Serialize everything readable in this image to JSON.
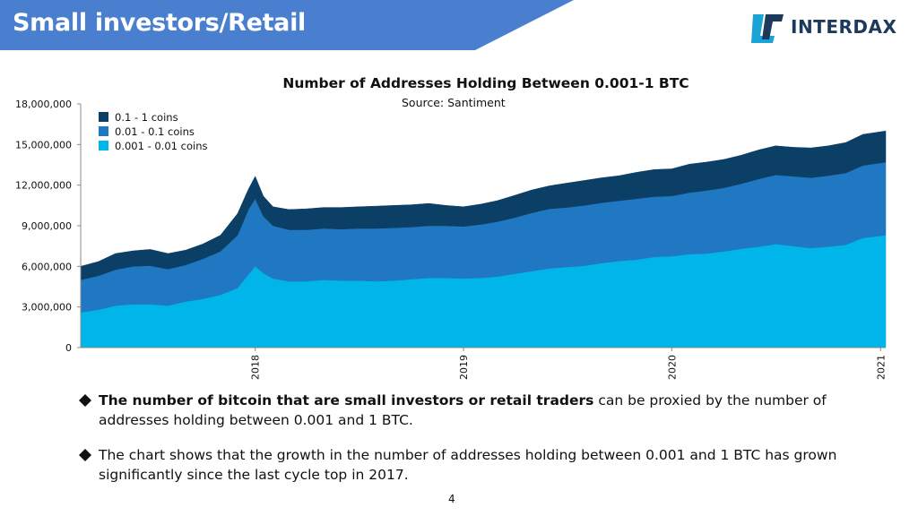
{
  "header": {
    "title": "Small investors/Retail",
    "banner_color": "#4a7fd0"
  },
  "logo": {
    "text": "INTERDAX",
    "mark_color": "#1aa3d6",
    "text_color": "#1b3a5c"
  },
  "chart_data": {
    "type": "area",
    "stacked": true,
    "title": "Number of Addresses Holding Between 0.001-1 BTC",
    "subtitle": "Source: Santiment",
    "xlabel": "",
    "ylabel": "",
    "ylim": [
      0,
      18000000
    ],
    "y_ticks": [
      0,
      3000000,
      6000000,
      9000000,
      12000000,
      15000000,
      18000000
    ],
    "y_tick_labels": [
      "0",
      "3,000,000",
      "6,000,000",
      "9,000,000",
      "12,000,000",
      "15,000,000",
      "18,000,000"
    ],
    "xlim": [
      "2017-03-01",
      "2021-01-10"
    ],
    "x_ticks": [
      "2018-01-01",
      "2019-01-01",
      "2020-01-01",
      "2021-01-01"
    ],
    "x_tick_labels": [
      "2018",
      "2019",
      "2020",
      "2021"
    ],
    "grid": false,
    "legend_position": "top-left",
    "x": [
      "2017-03-01",
      "2017-04-01",
      "2017-05-01",
      "2017-06-01",
      "2017-07-01",
      "2017-08-01",
      "2017-09-01",
      "2017-10-01",
      "2017-11-01",
      "2017-12-01",
      "2017-12-20",
      "2018-01-01",
      "2018-01-15",
      "2018-02-01",
      "2018-03-01",
      "2018-04-01",
      "2018-05-01",
      "2018-06-01",
      "2018-07-01",
      "2018-08-01",
      "2018-09-01",
      "2018-10-01",
      "2018-11-01",
      "2018-12-01",
      "2019-01-01",
      "2019-02-01",
      "2019-03-01",
      "2019-04-01",
      "2019-05-01",
      "2019-06-01",
      "2019-07-01",
      "2019-08-01",
      "2019-09-01",
      "2019-10-01",
      "2019-11-01",
      "2019-12-01",
      "2020-01-01",
      "2020-02-01",
      "2020-03-01",
      "2020-04-01",
      "2020-05-01",
      "2020-06-01",
      "2020-07-01",
      "2020-08-01",
      "2020-09-01",
      "2020-10-01",
      "2020-11-01",
      "2020-12-01",
      "2021-01-10"
    ],
    "series": [
      {
        "name": "0.001 - 0.01 coins",
        "color": "#00b5ea",
        "values": [
          2600000,
          2800000,
          3100000,
          3200000,
          3200000,
          3100000,
          3400000,
          3600000,
          3900000,
          4400000,
          5400000,
          6000000,
          5500000,
          5100000,
          4900000,
          4900000,
          5000000,
          4950000,
          4950000,
          4900000,
          4950000,
          5050000,
          5150000,
          5150000,
          5100000,
          5150000,
          5250000,
          5450000,
          5650000,
          5850000,
          5950000,
          6050000,
          6250000,
          6400000,
          6500000,
          6700000,
          6750000,
          6900000,
          6950000,
          7100000,
          7300000,
          7450000,
          7650000,
          7500000,
          7350000,
          7450000,
          7600000,
          8100000,
          8300000
        ]
      },
      {
        "name": "0.01 - 0.1 coins",
        "color": "#1f78c1",
        "values": [
          2400000,
          2500000,
          2650000,
          2800000,
          2850000,
          2700000,
          2700000,
          2950000,
          3200000,
          3900000,
          4800000,
          5000000,
          4200000,
          3900000,
          3800000,
          3800000,
          3800000,
          3800000,
          3850000,
          3900000,
          3900000,
          3850000,
          3850000,
          3850000,
          3850000,
          3950000,
          4050000,
          4150000,
          4300000,
          4400000,
          4400000,
          4450000,
          4450000,
          4450000,
          4500000,
          4450000,
          4450000,
          4550000,
          4650000,
          4700000,
          4800000,
          5000000,
          5100000,
          5150000,
          5200000,
          5250000,
          5300000,
          5350000,
          5400000
        ]
      },
      {
        "name": "0.1 - 1 coins",
        "color": "#0c3f66",
        "values": [
          1000000,
          1050000,
          1200000,
          1150000,
          1200000,
          1150000,
          1100000,
          1100000,
          1200000,
          1600000,
          1500000,
          1650000,
          1500000,
          1400000,
          1500000,
          1550000,
          1550000,
          1600000,
          1600000,
          1650000,
          1650000,
          1650000,
          1650000,
          1500000,
          1450000,
          1500000,
          1550000,
          1650000,
          1700000,
          1700000,
          1800000,
          1850000,
          1850000,
          1850000,
          1950000,
          2000000,
          2000000,
          2100000,
          2100000,
          2100000,
          2100000,
          2150000,
          2150000,
          2150000,
          2200000,
          2200000,
          2250000,
          2300000,
          2300000
        ]
      }
    ]
  },
  "bullets": [
    {
      "bold": "The number of bitcoin that are small investors or retail traders",
      "rest": " can be proxied by the number of addresses holding between 0.001 and 1 BTC."
    },
    {
      "bold": "",
      "rest": "The chart shows that the growth in the number of addresses holding between 0.001 and 1 BTC has grown significantly since the last cycle top in 2017."
    }
  ],
  "page_number": "4"
}
